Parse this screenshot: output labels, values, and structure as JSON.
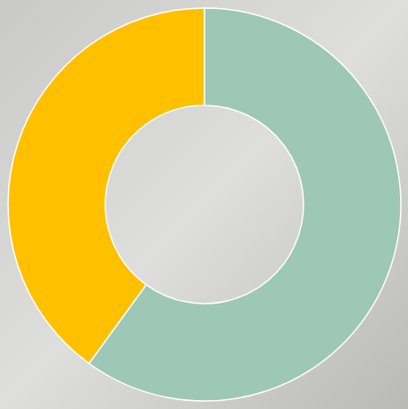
{
  "chart_data": {
    "type": "donut",
    "values": [
      60,
      40
    ],
    "colors": [
      "#9dc7b6",
      "#ffc000"
    ]
  }
}
